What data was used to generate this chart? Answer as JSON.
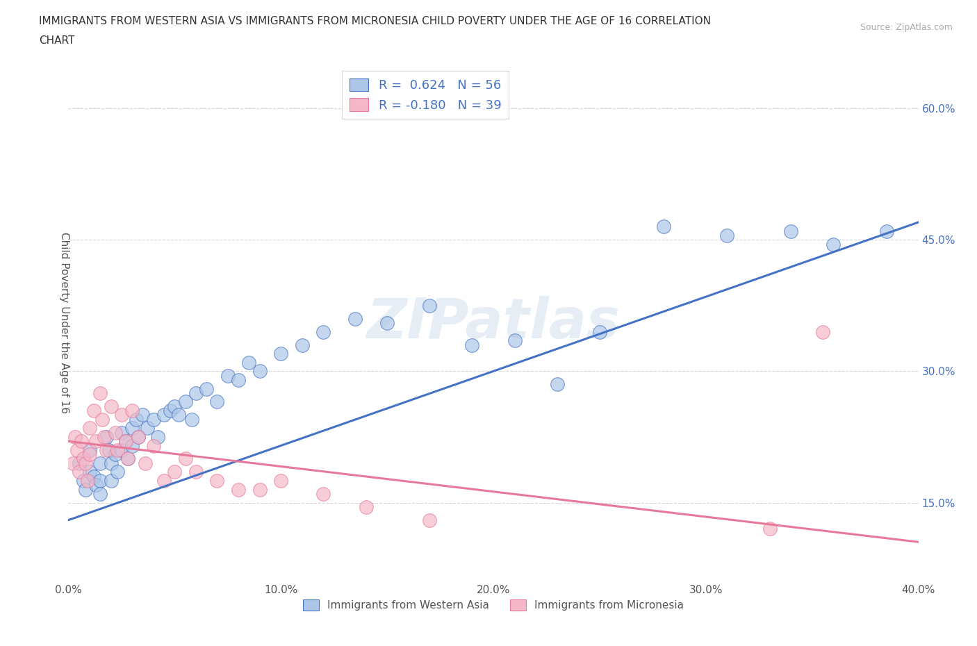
{
  "title_line1": "IMMIGRANTS FROM WESTERN ASIA VS IMMIGRANTS FROM MICRONESIA CHILD POVERTY UNDER THE AGE OF 16 CORRELATION",
  "title_line2": "CHART",
  "source_text": "Source: ZipAtlas.com",
  "ylabel": "Child Poverty Under the Age of 16",
  "xlim": [
    0.0,
    0.4
  ],
  "ylim": [
    0.06,
    0.65
  ],
  "x_ticks": [
    0.0,
    0.1,
    0.2,
    0.3,
    0.4
  ],
  "x_tick_labels": [
    "0.0%",
    "10.0%",
    "20.0%",
    "30.0%",
    "40.0%"
  ],
  "y_ticks": [
    0.15,
    0.3,
    0.45,
    0.6
  ],
  "y_tick_labels": [
    "15.0%",
    "30.0%",
    "45.0%",
    "60.0%"
  ],
  "R_western": 0.624,
  "N_western": 56,
  "R_micronesia": -0.18,
  "N_micronesia": 39,
  "color_western": "#adc6e8",
  "color_micronesia": "#f5b8c8",
  "line_color_western": "#4472c4",
  "line_color_micronesia": "#e87899",
  "background_color": "#ffffff",
  "watermark_text": "ZIPatlas",
  "wa_line_x0": 0.0,
  "wa_line_y0": 0.13,
  "wa_line_x1": 0.4,
  "wa_line_y1": 0.47,
  "mic_line_x0": 0.0,
  "mic_line_y0": 0.22,
  "mic_line_x1": 0.4,
  "mic_line_y1": 0.105,
  "western_asia_x": [
    0.005,
    0.007,
    0.008,
    0.01,
    0.01,
    0.012,
    0.013,
    0.015,
    0.015,
    0.015,
    0.018,
    0.019,
    0.02,
    0.02,
    0.022,
    0.023,
    0.025,
    0.025,
    0.027,
    0.028,
    0.03,
    0.03,
    0.032,
    0.033,
    0.035,
    0.037,
    0.04,
    0.042,
    0.045,
    0.048,
    0.05,
    0.052,
    0.055,
    0.058,
    0.06,
    0.065,
    0.07,
    0.075,
    0.08,
    0.085,
    0.09,
    0.1,
    0.11,
    0.12,
    0.135,
    0.15,
    0.17,
    0.19,
    0.21,
    0.23,
    0.25,
    0.28,
    0.31,
    0.34,
    0.36,
    0.385
  ],
  "western_asia_y": [
    0.195,
    0.175,
    0.165,
    0.21,
    0.185,
    0.18,
    0.17,
    0.195,
    0.175,
    0.16,
    0.225,
    0.21,
    0.195,
    0.175,
    0.205,
    0.185,
    0.23,
    0.21,
    0.22,
    0.2,
    0.235,
    0.215,
    0.245,
    0.225,
    0.25,
    0.235,
    0.245,
    0.225,
    0.25,
    0.255,
    0.26,
    0.25,
    0.265,
    0.245,
    0.275,
    0.28,
    0.265,
    0.295,
    0.29,
    0.31,
    0.3,
    0.32,
    0.33,
    0.345,
    0.36,
    0.355,
    0.375,
    0.33,
    0.335,
    0.285,
    0.345,
    0.465,
    0.455,
    0.46,
    0.445,
    0.46
  ],
  "micronesia_x": [
    0.002,
    0.003,
    0.004,
    0.005,
    0.006,
    0.007,
    0.008,
    0.009,
    0.01,
    0.01,
    0.012,
    0.013,
    0.015,
    0.016,
    0.017,
    0.018,
    0.02,
    0.022,
    0.023,
    0.025,
    0.027,
    0.028,
    0.03,
    0.033,
    0.036,
    0.04,
    0.045,
    0.05,
    0.055,
    0.06,
    0.07,
    0.08,
    0.09,
    0.1,
    0.12,
    0.14,
    0.17,
    0.33,
    0.355
  ],
  "micronesia_y": [
    0.195,
    0.225,
    0.21,
    0.185,
    0.22,
    0.2,
    0.195,
    0.175,
    0.235,
    0.205,
    0.255,
    0.22,
    0.275,
    0.245,
    0.225,
    0.21,
    0.26,
    0.23,
    0.21,
    0.25,
    0.22,
    0.2,
    0.255,
    0.225,
    0.195,
    0.215,
    0.175,
    0.185,
    0.2,
    0.185,
    0.175,
    0.165,
    0.165,
    0.175,
    0.16,
    0.145,
    0.13,
    0.12,
    0.345
  ]
}
